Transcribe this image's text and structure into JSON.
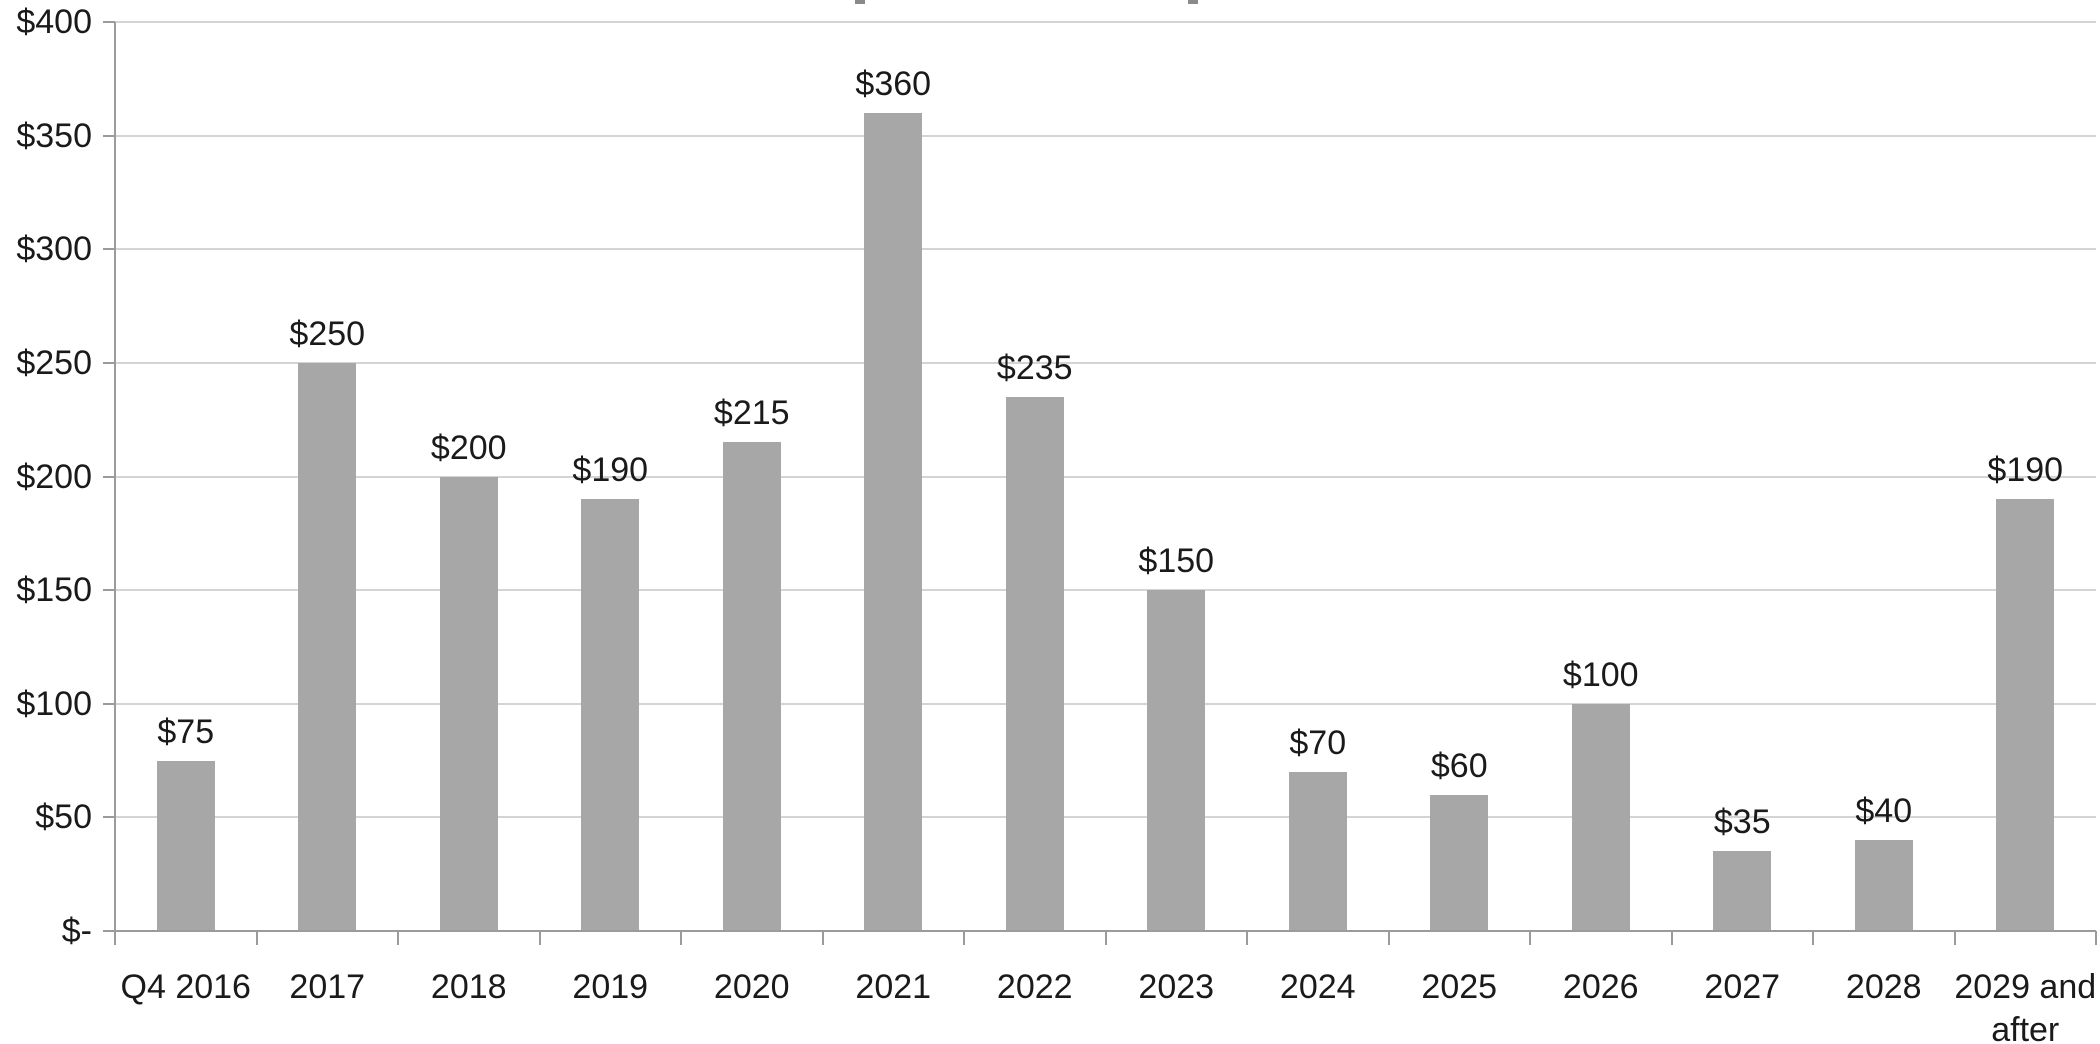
{
  "chart_data": {
    "type": "bar",
    "title": "",
    "note": "chart title is cropped out of frame at top edge",
    "categories": [
      "Q4 2016",
      "2017",
      "2018",
      "2019",
      "2020",
      "2021",
      "2022",
      "2023",
      "2024",
      "2025",
      "2026",
      "2027",
      "2028",
      "2029 and\nafter"
    ],
    "values": [
      75,
      250,
      200,
      190,
      215,
      360,
      235,
      150,
      70,
      60,
      100,
      35,
      40,
      190
    ],
    "data_labels": [
      "$75",
      "$250",
      "$200",
      "$190",
      "$215",
      "$360",
      "$235",
      "$150",
      "$70",
      "$60",
      "$100",
      "$35",
      "$40",
      "$190"
    ],
    "xlabel": "",
    "ylabel": "",
    "ylim": [
      0,
      400
    ],
    "y_ticks": [
      {
        "label": "$-",
        "value": 0
      },
      {
        "label": "$50",
        "value": 50
      },
      {
        "label": "$100",
        "value": 100
      },
      {
        "label": "$150",
        "value": 150
      },
      {
        "label": "$200",
        "value": 200
      },
      {
        "label": "$250",
        "value": 250
      },
      {
        "label": "$300",
        "value": 300
      },
      {
        "label": "$350",
        "value": 350
      },
      {
        "label": "$400",
        "value": 400
      }
    ],
    "grid": true,
    "legend_position": "none",
    "colors": {
      "bar_fill": "#a7a7a7",
      "gridline": "#d4d4d4",
      "axis": "#9b9b9b",
      "label_text": "#1a1a1a"
    }
  }
}
